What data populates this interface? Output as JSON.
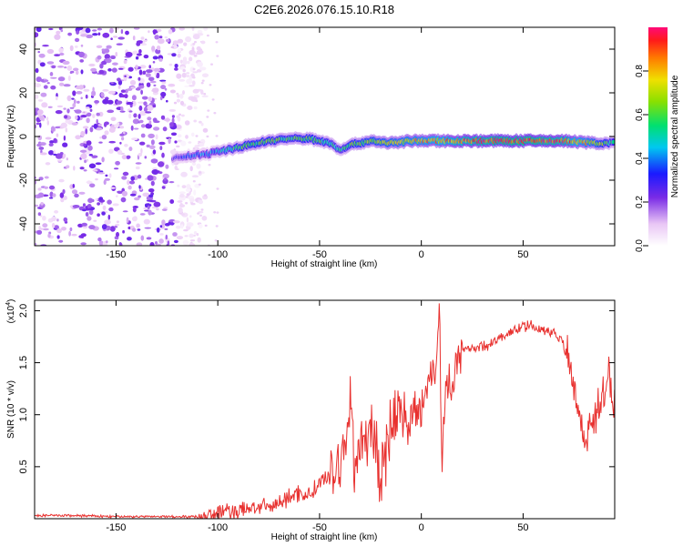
{
  "title": "C2E6.2026.076.15.10.R18",
  "colors": {
    "snr_line": "#e8312f",
    "frame": "#000000"
  },
  "chart_data": [
    {
      "type": "heatmap",
      "name": "spectrogram",
      "xlabel": "Height of straight line (km)",
      "ylabel": "Frequency (Hz)",
      "xlim": [
        -190,
        95
      ],
      "ylim": [
        -50,
        50
      ],
      "xticks": [
        -150,
        -100,
        -50,
        0,
        50
      ],
      "yticks": [
        -40,
        -20,
        0,
        20,
        40
      ],
      "colorbar": {
        "label": "Normalized spectral amplitude",
        "range": [
          0,
          1
        ],
        "ticks": [
          "0.0",
          "0.2",
          "0.4",
          "0.6",
          "0.8"
        ],
        "tick_values": [
          0,
          0.2,
          0.4,
          0.6,
          0.8
        ]
      },
      "noise_region_km": [
        -190,
        -112
      ],
      "signal_ridge": {
        "x": [
          -122,
          -115,
          -105,
          -95,
          -85,
          -75,
          -65,
          -55,
          -45,
          -40,
          -35,
          -25,
          -15,
          -5,
          5,
          15,
          25,
          40,
          55,
          70,
          85,
          95
        ],
        "freq": [
          -10,
          -9,
          -8,
          -6,
          -4,
          -2,
          -1,
          -1,
          -3,
          -6,
          -4,
          -2,
          -3,
          -2,
          -2,
          -2,
          -2,
          -2,
          -2,
          -2,
          -3,
          -3
        ],
        "amplitude": [
          0.25,
          0.35,
          0.4,
          0.5,
          0.6,
          0.6,
          0.55,
          0.6,
          0.55,
          0.5,
          0.6,
          0.65,
          0.7,
          0.75,
          0.8,
          0.85,
          0.9,
          0.95,
          0.95,
          0.9,
          0.7,
          0.5
        ]
      }
    },
    {
      "type": "line",
      "name": "snr",
      "xlabel": "Height of straight line (km)",
      "ylabel": "SNR (10 * v/v)",
      "y_multiplier": "(x10",
      "y_multiplier_exp": "4",
      "y_multiplier_close": ")",
      "xlim": [
        -190,
        95
      ],
      "ylim": [
        0,
        2.1
      ],
      "xticks": [
        -150,
        -100,
        -50,
        0,
        50
      ],
      "yticks": [
        0.5,
        1.0,
        1.5,
        2.0
      ],
      "ytick_labels": [
        "0.5",
        "1.0",
        "1.5",
        "2.0"
      ],
      "series": [
        {
          "name": "SNR",
          "x": [
            -190,
            -170,
            -150,
            -130,
            -110,
            -100,
            -95,
            -90,
            -85,
            -80,
            -75,
            -70,
            -65,
            -60,
            -55,
            -50,
            -45,
            -40,
            -37,
            -35,
            -33,
            -30,
            -25,
            -20,
            -18,
            -15,
            -10,
            -5,
            0,
            2,
            5,
            8,
            9,
            10,
            12,
            15,
            20,
            25,
            30,
            35,
            40,
            45,
            50,
            55,
            60,
            65,
            70,
            72,
            75,
            78,
            80,
            85,
            88,
            90,
            92,
            95
          ],
          "y": [
            0.03,
            0.03,
            0.02,
            0.02,
            0.02,
            0.05,
            0.08,
            0.06,
            0.1,
            0.12,
            0.1,
            0.15,
            0.2,
            0.25,
            0.22,
            0.35,
            0.4,
            0.55,
            0.75,
            1.15,
            0.6,
            0.7,
            0.8,
            0.5,
            0.6,
            0.9,
            1.05,
            0.95,
            1.05,
            1.3,
            1.4,
            1.6,
            2.1,
            0.55,
            1.3,
            1.35,
            1.6,
            1.65,
            1.65,
            1.7,
            1.75,
            1.8,
            1.85,
            1.85,
            1.8,
            1.8,
            1.7,
            1.6,
            1.3,
            0.95,
            0.8,
            0.95,
            1.1,
            1.2,
            1.45,
            1.0
          ]
        }
      ]
    }
  ]
}
